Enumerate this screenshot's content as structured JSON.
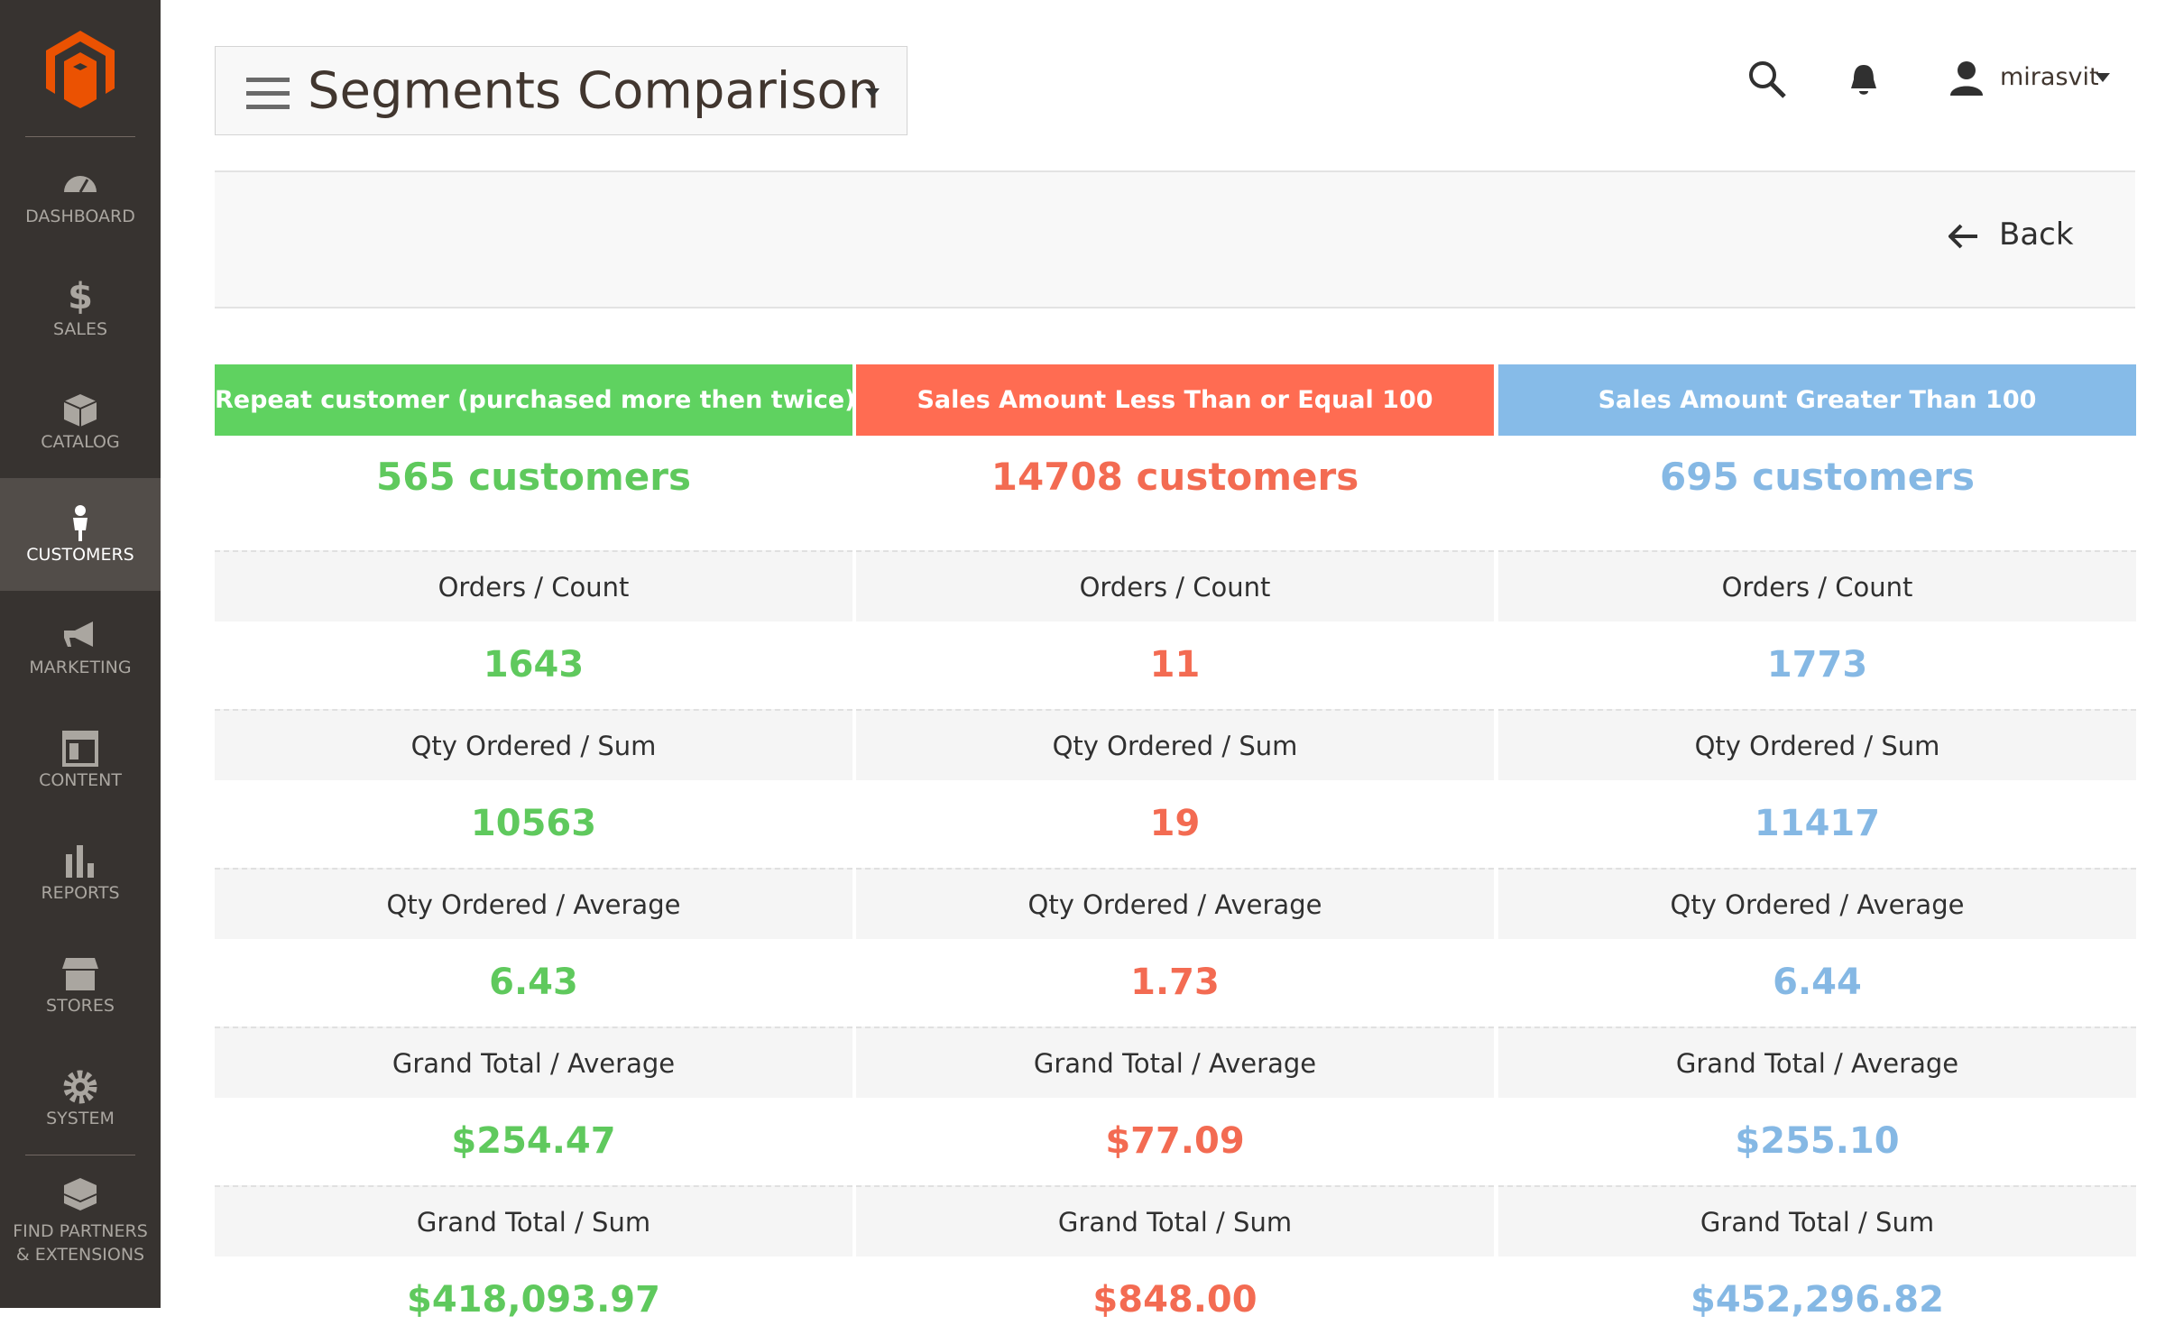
{
  "sidebar": {
    "items": [
      "DASHBOARD",
      "SALES",
      "CATALOG",
      "CUSTOMERS",
      "MARKETING",
      "CONTENT",
      "REPORTS",
      "STORES",
      "SYSTEM",
      "FIND PARTNERS & EXTENSIONS"
    ],
    "active": 3
  },
  "header": {
    "title": "Segments Comparison",
    "user": "mirasvit"
  },
  "toolbar": {
    "back": "Back"
  },
  "segments": [
    {
      "name": "Repeat customer (purchased more then twice)",
      "customers": "565 customers"
    },
    {
      "name": "Sales Amount Less Than or Equal 100",
      "customers": "14708 customers"
    },
    {
      "name": "Sales Amount Greater Than 100",
      "customers": "695 customers"
    }
  ],
  "metrics": [
    {
      "label": "Orders / Count",
      "values": [
        "1643",
        "11",
        "1773"
      ]
    },
    {
      "label": "Qty Ordered / Sum",
      "values": [
        "10563",
        "19",
        "11417"
      ]
    },
    {
      "label": "Qty Ordered / Average",
      "values": [
        "6.43",
        "1.73",
        "6.44"
      ]
    },
    {
      "label": "Grand Total / Average",
      "values": [
        "$254.47",
        "$77.09",
        "$255.10"
      ]
    },
    {
      "label": "Grand Total / Sum",
      "values": [
        "$418,093.97",
        "$848.00",
        "$452,296.82"
      ]
    }
  ]
}
